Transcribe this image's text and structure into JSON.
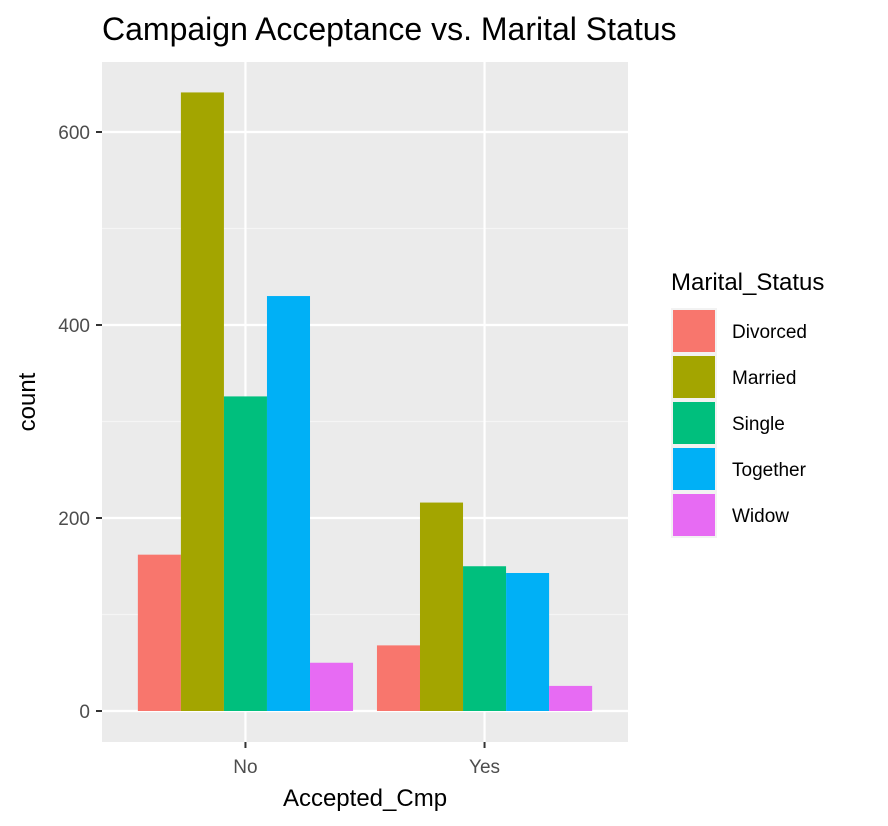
{
  "chart_data": {
    "type": "bar",
    "title": "Campaign Acceptance vs. Marital Status",
    "xlabel": "Accepted_Cmp",
    "ylabel": "count",
    "categories": [
      "No",
      "Yes"
    ],
    "ylim": [
      0,
      650
    ],
    "yticks": [
      0,
      200,
      400,
      600
    ],
    "grid": true,
    "legend": {
      "title": "Marital_Status",
      "position": "right"
    },
    "series": [
      {
        "name": "Divorced",
        "color": "#F8766D",
        "values": [
          162,
          68
        ]
      },
      {
        "name": "Married",
        "color": "#A3A500",
        "values": [
          641,
          216
        ]
      },
      {
        "name": "Single",
        "color": "#00BF7D",
        "values": [
          326,
          150
        ]
      },
      {
        "name": "Together",
        "color": "#00B0F6",
        "values": [
          430,
          143
        ]
      },
      {
        "name": "Widow",
        "color": "#E76BF3",
        "values": [
          50,
          26
        ]
      }
    ]
  }
}
